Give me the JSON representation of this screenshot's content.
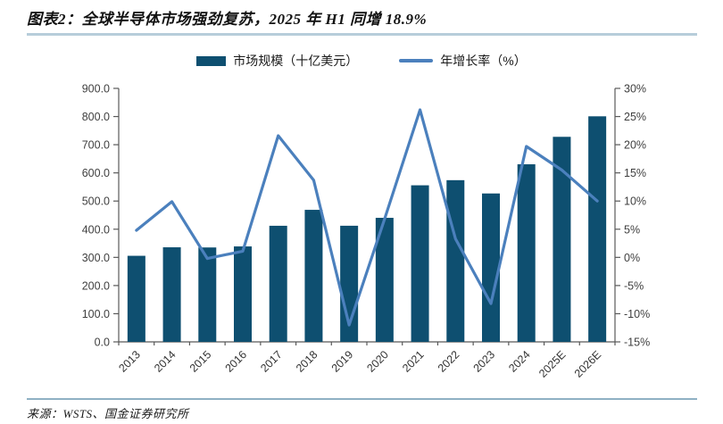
{
  "page": {
    "title": "图表2：全球半导体市场强劲复苏，2025 年 H1 同增 18.9%",
    "source": "来源：WSTS、国金证券研究所"
  },
  "legend": {
    "bar_label": "市场规模（十亿美元）",
    "line_label": "年增长率（%）"
  },
  "colors": {
    "bar": "#0e4f70",
    "line": "#4b80bd",
    "axis": "#595959",
    "label": "#3f3f3f",
    "rule_top": "#b7cdda",
    "rule_bottom": "#8fb0c4"
  },
  "chart_data": {
    "type": "bar",
    "title": "图表2：全球半导体市场强劲复苏，2025 年 H1 同增 18.9%",
    "categories": [
      "2013",
      "2014",
      "2015",
      "2016",
      "2017",
      "2018",
      "2019",
      "2020",
      "2021",
      "2022",
      "2023",
      "2024",
      "2025E",
      "2026E"
    ],
    "series": [
      {
        "name": "市场规模（十亿美元）",
        "type": "bar",
        "axis": "left",
        "values": [
          305.6,
          335.8,
          335.2,
          338.9,
          412.2,
          468.8,
          412.3,
          440.4,
          555.9,
          574.1,
          526.9,
          630.5,
          728.0,
          800.8
        ]
      },
      {
        "name": "年增长率（%）",
        "type": "line",
        "axis": "right",
        "values": [
          4.8,
          9.9,
          -0.2,
          1.1,
          21.6,
          13.7,
          -12.0,
          6.8,
          26.2,
          3.3,
          -8.2,
          19.7,
          15.5,
          10.0
        ]
      }
    ],
    "left_axis": {
      "min": 0,
      "max": 900,
      "step": 100,
      "tick_labels": [
        "0.0",
        "100.0",
        "200.0",
        "300.0",
        "400.0",
        "500.0",
        "600.0",
        "700.0",
        "800.0",
        "900.0"
      ]
    },
    "right_axis": {
      "min": -15,
      "max": 30,
      "step": 5,
      "tick_labels": [
        "-15%",
        "-10%",
        "-5%",
        "0%",
        "5%",
        "10%",
        "15%",
        "20%",
        "25%",
        "30%"
      ]
    },
    "grid": false,
    "legend_position": "top"
  }
}
